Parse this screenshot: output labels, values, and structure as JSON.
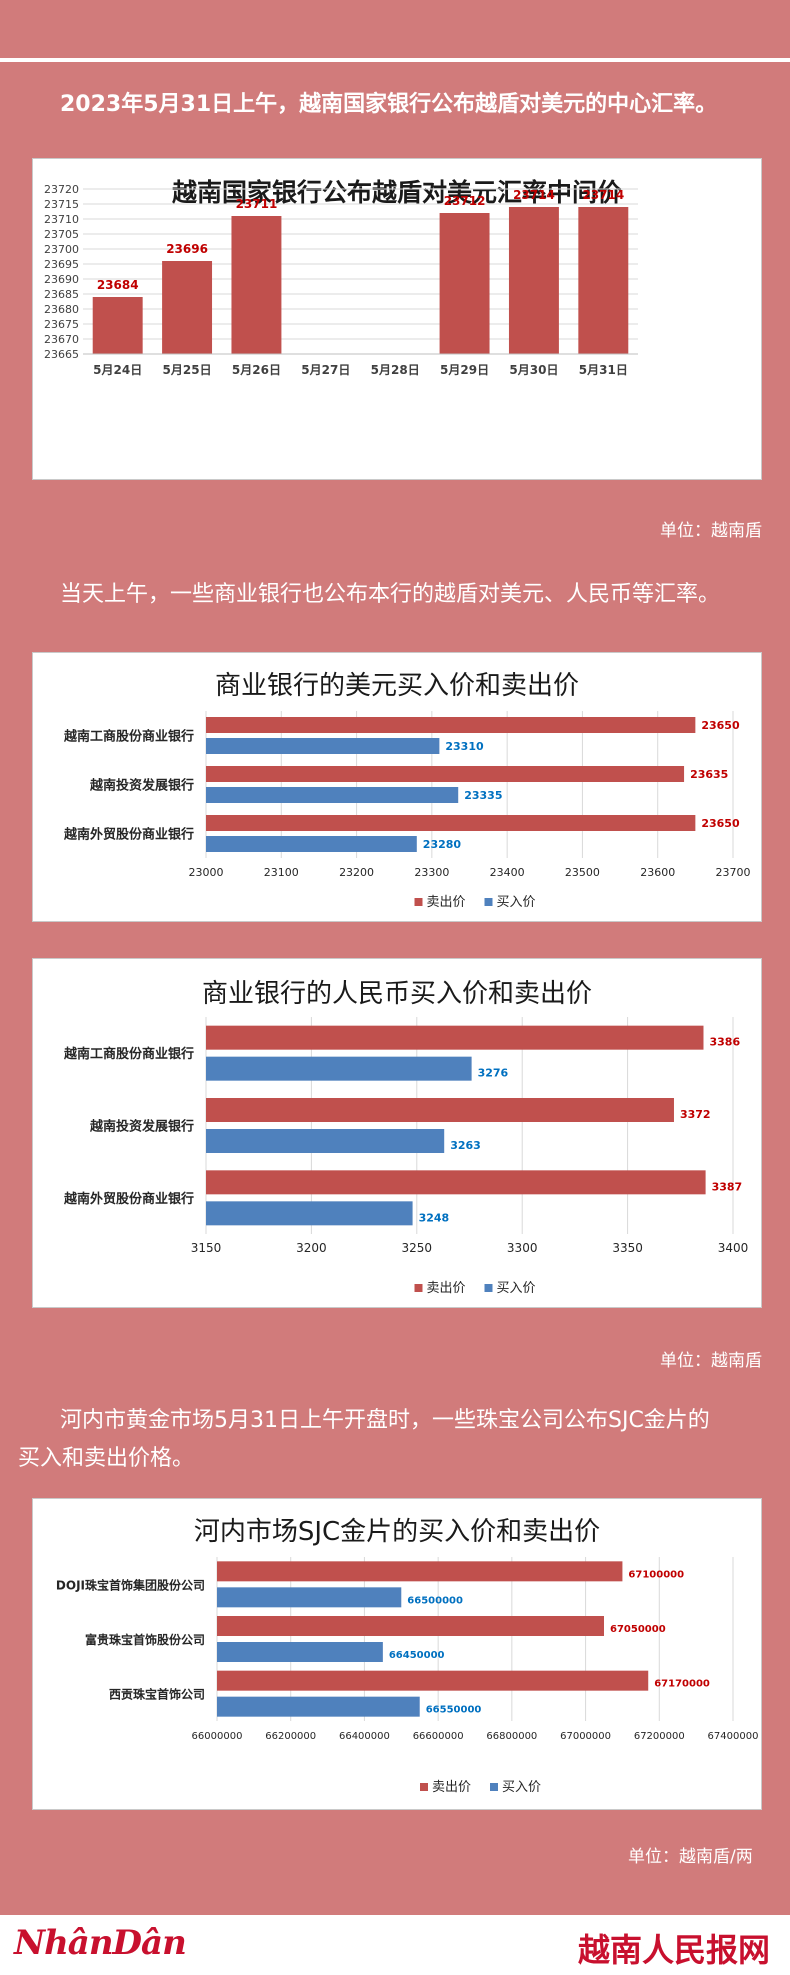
{
  "intro1": "2023年5月31日上午，越南国家银行公布越盾对美元的中心汇率。",
  "intro2": "当天上午，一些商业银行也公布本行的越盾对美元、人民币等汇率。",
  "intro3_line1": "河内市黄金市场5月31日上午开盘时，一些珠宝公司公布SJC金片的",
  "intro3_line2": "买入和卖出价格。",
  "unit1": "单位：越南盾",
  "unit2": "单位：越南盾",
  "unit3": "单位：越南盾/两",
  "footer": {
    "logo_left": "NhânDân",
    "logo_right": "越南人民报网"
  },
  "colors": {
    "background": "#d17b7b",
    "sell": "#c0504d",
    "buy": "#4f81bd",
    "sell_label": "#c00000",
    "buy_label": "#0070c0"
  },
  "chart_data": [
    {
      "type": "bar",
      "title": "越南国家银行公布越盾对美元汇率中间价",
      "categories": [
        "5月24日",
        "5月25日",
        "5月26日",
        "5月27日",
        "5月28日",
        "5月29日",
        "5月30日",
        "5月31日"
      ],
      "values": [
        23684,
        23696,
        23711,
        null,
        null,
        23712,
        23714,
        23714
      ],
      "ylim": [
        23665,
        23720
      ],
      "yticks": [
        23720,
        23715,
        23710,
        23705,
        23700,
        23695,
        23690,
        23685,
        23680,
        23675,
        23670,
        23665
      ],
      "grid": true
    },
    {
      "type": "bar",
      "orientation": "horizontal",
      "title": "商业银行的美元买入价和卖出价",
      "categories": [
        "越南工商股份商业银行",
        "越南投资发展银行",
        "越南外贸股份商业银行"
      ],
      "series": [
        {
          "name": "卖出价",
          "values": [
            23650,
            23635,
            23650
          ]
        },
        {
          "name": "买入价",
          "values": [
            23310,
            23335,
            23280
          ]
        }
      ],
      "xlim": [
        23000,
        23700
      ],
      "xticks": [
        23000,
        23100,
        23200,
        23300,
        23400,
        23500,
        23600,
        23700
      ],
      "legend": "bottom"
    },
    {
      "type": "bar",
      "orientation": "horizontal",
      "title": "商业银行的人民币买入价和卖出价",
      "categories": [
        "越南工商股份商业银行",
        "越南投资发展银行",
        "越南外贸股份商业银行"
      ],
      "series": [
        {
          "name": "卖出价",
          "values": [
            3386,
            3372,
            3387
          ]
        },
        {
          "name": "买入价",
          "values": [
            3276,
            3263,
            3248
          ]
        }
      ],
      "xlim": [
        3150,
        3400
      ],
      "xticks": [
        3150,
        3200,
        3250,
        3300,
        3350,
        3400
      ],
      "legend": "bottom"
    },
    {
      "type": "bar",
      "orientation": "horizontal",
      "title": "河内市场SJC金片的买入价和卖出价",
      "categories": [
        "DOJI珠宝首饰集团股份公司",
        "富贵珠宝首饰股份公司",
        "西贡珠宝首饰公司"
      ],
      "series": [
        {
          "name": "卖出价",
          "values": [
            67100000,
            67050000,
            67170000
          ]
        },
        {
          "name": "买入价",
          "values": [
            66500000,
            66450000,
            66550000
          ]
        }
      ],
      "xlim": [
        66000000,
        67400000
      ],
      "xticks": [
        66000000,
        66200000,
        66400000,
        66600000,
        66800000,
        67000000,
        67200000,
        67400000
      ],
      "legend": "bottom"
    }
  ]
}
